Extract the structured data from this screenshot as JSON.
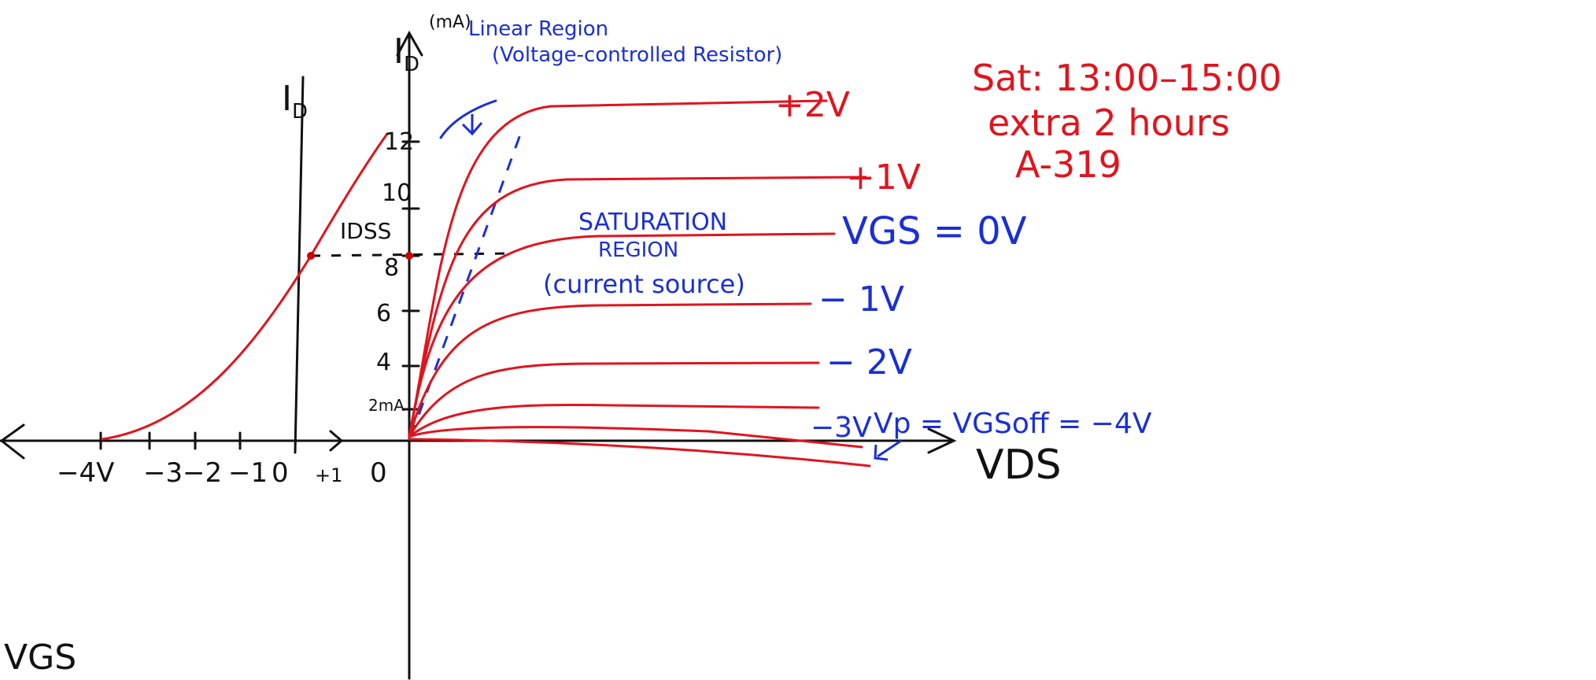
{
  "axes": {
    "drain_current": "I",
    "drain_current_sub": "D",
    "unit": "(mA)",
    "transfer_current": "I",
    "transfer_current_sub": "D",
    "gate_voltage": "VGS",
    "drain_voltage": "VDS"
  },
  "annotations": {
    "linear_region": "Linear Region",
    "linear_note": "(Voltage-controlled Resistor)",
    "saturation_1": "SATURATION",
    "saturation_2": "REGION",
    "saturation_note": "(current source)",
    "idss": "IDSS",
    "pinch_off": "Vp = VGSoff = −4V"
  },
  "schedule": {
    "time": "Sat: 13:00–15:00",
    "extra": "extra 2 hours",
    "room": "A-319"
  },
  "curve_labels": [
    "+2V",
    "+1V",
    "VGS = 0V",
    "− 1V",
    "− 2V",
    "−3V"
  ],
  "drain_ticks": [
    "12",
    "10",
    "8",
    "6",
    "4",
    "2mA"
  ],
  "gate_ticks": [
    "−4V",
    "−3",
    "−2",
    "−1",
    "0",
    "+1"
  ],
  "origin": "0"
}
